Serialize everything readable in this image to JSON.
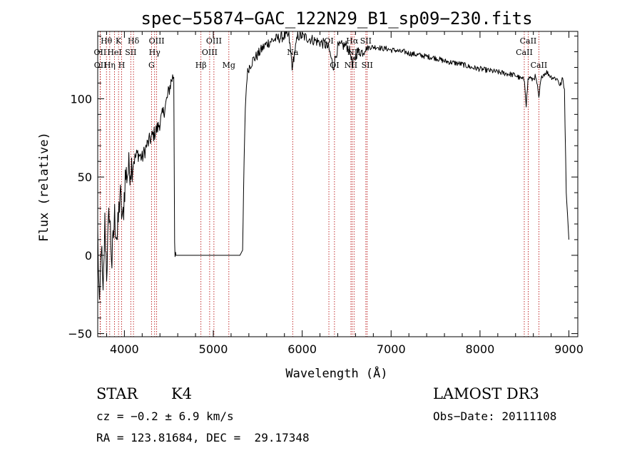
{
  "chart_data": {
    "type": "line",
    "title": "spec−55874−GAC_122N29_B1_sp09−230.fits",
    "xlabel": "Wavelength (Å)",
    "ylabel": "Flux (relative)",
    "xlim": [
      3700,
      9100
    ],
    "ylim": [
      -52,
      143
    ],
    "xticks": [
      4000,
      5000,
      6000,
      7000,
      8000,
      9000
    ],
    "xtick_labels": [
      "4000",
      "5000",
      "6000",
      "7000",
      "8000",
      "9000"
    ],
    "yticks": [
      -50,
      0,
      50,
      100
    ],
    "ytick_labels": [
      "−50",
      "0",
      "50",
      "100"
    ],
    "series": [
      {
        "name": "flux",
        "x": [
          3700,
          3720,
          3740,
          3760,
          3780,
          3800,
          3830,
          3860,
          3890,
          3920,
          3950,
          3980,
          4010,
          4050,
          4100,
          4150,
          4200,
          4250,
          4300,
          4340,
          4380,
          4420,
          4460,
          4500,
          4530,
          4555,
          4565,
          4570,
          4580,
          4600,
          5000,
          5300,
          5330,
          5340,
          5360,
          5380,
          5400,
          5450,
          5500,
          5550,
          5600,
          5650,
          5700,
          5750,
          5800,
          5850,
          5893,
          5900,
          5950,
          6000,
          6050,
          6100,
          6150,
          6200,
          6250,
          6300,
          6350,
          6400,
          6450,
          6500,
          6550,
          6563,
          6580,
          6620,
          6680,
          6720,
          6760,
          6800,
          6850,
          6900,
          6950,
          7000,
          7050,
          7100,
          7150,
          7200,
          7300,
          7400,
          7500,
          7600,
          7700,
          7800,
          7900,
          8000,
          8100,
          8200,
          8300,
          8400,
          8450,
          8500,
          8520,
          8540,
          8560,
          8580,
          8600,
          8620,
          8640,
          8662,
          8680,
          8700,
          8750,
          8800,
          8850,
          8880,
          8900,
          8930,
          8950,
          8970,
          8990,
          9000
        ],
        "y": [
          15,
          -40,
          10,
          -30,
          20,
          -10,
          30,
          -5,
          25,
          10,
          40,
          20,
          50,
          55,
          60,
          65,
          62,
          70,
          75,
          78,
          82,
          88,
          95,
          105,
          112,
          115,
          10,
          3,
          0,
          0,
          0,
          0,
          0,
          40,
          95,
          115,
          120,
          125,
          128,
          132,
          135,
          137,
          138,
          139,
          140,
          140,
          118,
          125,
          140,
          140,
          139,
          138,
          137,
          136,
          135,
          132,
          120,
          133,
          134,
          134,
          128,
          120,
          124,
          130,
          130,
          132,
          133,
          133,
          133,
          132,
          132,
          131,
          131,
          130,
          130,
          129,
          128,
          127,
          126,
          124,
          123,
          122,
          120,
          119,
          118,
          117,
          116,
          115,
          113,
          112,
          96,
          112,
          114,
          112,
          113,
          114,
          110,
          100,
          110,
          115,
          117,
          114,
          113,
          112,
          108,
          113,
          106,
          40,
          20,
          10
        ]
      }
    ],
    "spectral_lines": [
      {
        "label": "Hθ",
        "wavelength": 3798,
        "row": 1
      },
      {
        "label": "OII",
        "wavelength": 3727,
        "row": 2
      },
      {
        "label": "OII",
        "wavelength": 3729,
        "row": 3
      },
      {
        "label": "Hη",
        "wavelength": 3835,
        "row": 3
      },
      {
        "label": "HeI",
        "wavelength": 3889,
        "row": 2
      },
      {
        "label": "K",
        "wavelength": 3934,
        "row": 1
      },
      {
        "label": "SII",
        "wavelength": 4072,
        "row": 2
      },
      {
        "label": "H",
        "wavelength": 3969,
        "row": 3
      },
      {
        "label": "Hδ",
        "wavelength": 4102,
        "row": 1
      },
      {
        "label": "OIII",
        "wavelength": 4363,
        "row": 1
      },
      {
        "label": "Hγ",
        "wavelength": 4340,
        "row": 2
      },
      {
        "label": "G",
        "wavelength": 4305,
        "row": 3
      },
      {
        "label": "Hβ",
        "wavelength": 4861,
        "row": 3
      },
      {
        "label": "OIII",
        "wavelength": 5007,
        "row": 1
      },
      {
        "label": "OIII",
        "wavelength": 4959,
        "row": 2
      },
      {
        "label": "Mg",
        "wavelength": 5175,
        "row": 3
      },
      {
        "label": "Na",
        "wavelength": 5893,
        "row": 2
      },
      {
        "label": "OI",
        "wavelength": 6300,
        "row": 1
      },
      {
        "label": "OI",
        "wavelength": 6363,
        "row": 3
      },
      {
        "label": "NII",
        "wavelength": 6548,
        "row": 3
      },
      {
        "label": "Hα",
        "wavelength": 6563,
        "row": 1
      },
      {
        "label": "NII",
        "wavelength": 6583,
        "row": 2
      },
      {
        "label": "SII",
        "wavelength": 6716,
        "row": 1
      },
      {
        "label": "SII",
        "wavelength": 6731,
        "row": 3
      },
      {
        "label": "CaII",
        "wavelength": 8498,
        "row": 2
      },
      {
        "label": "CaII",
        "wavelength": 8542,
        "row": 1
      },
      {
        "label": "CaII",
        "wavelength": 8662,
        "row": 3
      }
    ]
  },
  "info": {
    "class": "STAR",
    "subclass": "K4",
    "survey": "LAMOST DR3",
    "cz": "cz = −0.2 ± 6.9 km/s",
    "obs_date": "Obs−Date: 20111108",
    "coords": "RA = 123.81684, DEC =  29.17348"
  }
}
